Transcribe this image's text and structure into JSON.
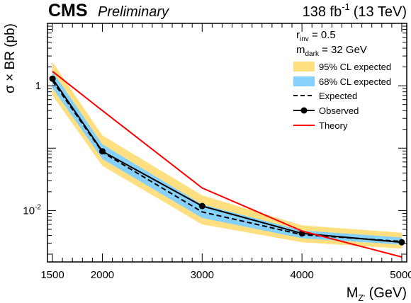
{
  "chart_data": {
    "type": "line",
    "experiment": "CMS",
    "status": "Preliminary",
    "lumi": {
      "value": "138 fb",
      "exp": "-1",
      "energy": "(13 TeV)"
    },
    "params": [
      {
        "main": "r",
        "sub": "inv",
        "rest": " = 0.5"
      },
      {
        "main": "m",
        "sub": "dark",
        "rest": " = 32 GeV"
      }
    ],
    "xlabel": {
      "main": "M",
      "sub": "Z'",
      "rest": " (GeV)"
    },
    "ylabel": "σ × BR (pb)",
    "xlim": [
      1450,
      5050
    ],
    "ylog": true,
    "ylim": [
      0.0015,
      10
    ],
    "xticks_major": [
      1500,
      2000,
      3000,
      4000,
      5000
    ],
    "xticks_minor_step": 100,
    "yticks_major": [
      {
        "value": 1,
        "label": "1",
        "exp": ""
      },
      {
        "value": 0.1,
        "label": "",
        "exp": ""
      },
      {
        "value": 0.01,
        "label": "10",
        "exp": "-2"
      }
    ],
    "x": [
      1500,
      2000,
      3000,
      4000,
      5000
    ],
    "series": [
      {
        "name": "95% CL expected",
        "kind": "band",
        "color": "#FFDF7F",
        "lo": [
          0.7,
          0.052,
          0.006,
          0.0031,
          0.00245
        ],
        "hi": [
          2.4,
          0.16,
          0.0175,
          0.0058,
          0.0044
        ]
      },
      {
        "name": "68% CL expected",
        "kind": "band",
        "color": "#85D1FB",
        "lo": [
          0.92,
          0.067,
          0.0076,
          0.0036,
          0.00285
        ],
        "hi": [
          1.7,
          0.115,
          0.0125,
          0.0048,
          0.0037
        ]
      },
      {
        "name": "Expected",
        "kind": "line",
        "dash": true,
        "color": "#000000",
        "values": [
          1.2,
          0.086,
          0.0095,
          0.0041,
          0.0032
        ]
      },
      {
        "name": "Observed",
        "kind": "line-markers",
        "color": "#000000",
        "values": [
          1.3,
          0.089,
          0.0118,
          0.0043,
          0.0031
        ]
      },
      {
        "name": "Theory",
        "kind": "line",
        "color": "#FF0000",
        "values": [
          1.7,
          0.4,
          0.023,
          0.0047,
          0.0018
        ]
      }
    ]
  }
}
